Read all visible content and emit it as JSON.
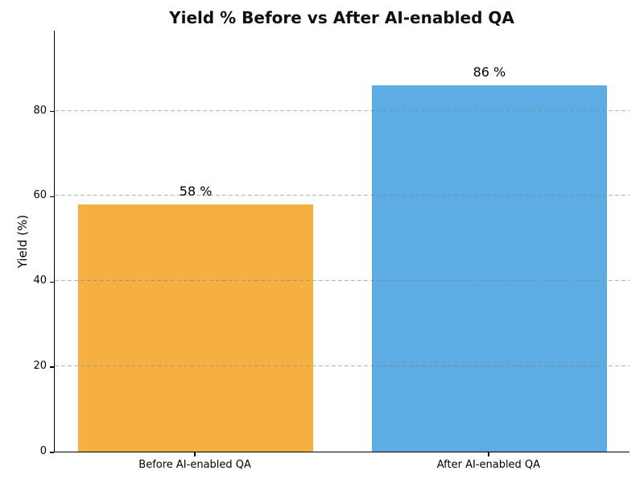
{
  "figure": {
    "background": "#ffffff"
  },
  "chart_data": {
    "type": "bar",
    "title": "Yield % Before vs After AI-enabled QA",
    "categories": [
      "Before AI-enabled QA",
      "After AI-enabled QA"
    ],
    "values": [
      58,
      86
    ],
    "value_labels": [
      "58 %",
      "86 %"
    ],
    "bar_colors": [
      "#f5b041",
      "#5dade2"
    ],
    "xlabel": "",
    "ylabel": "Yield (%)",
    "ylim": [
      0,
      99
    ],
    "xlim": [
      -0.48,
      1.48
    ],
    "bar_width": 0.8,
    "yticks": [
      0,
      20,
      40,
      60,
      80
    ],
    "grid": "horizontal-dashed",
    "grid_color": "#7d7d7d",
    "legend": "none"
  }
}
